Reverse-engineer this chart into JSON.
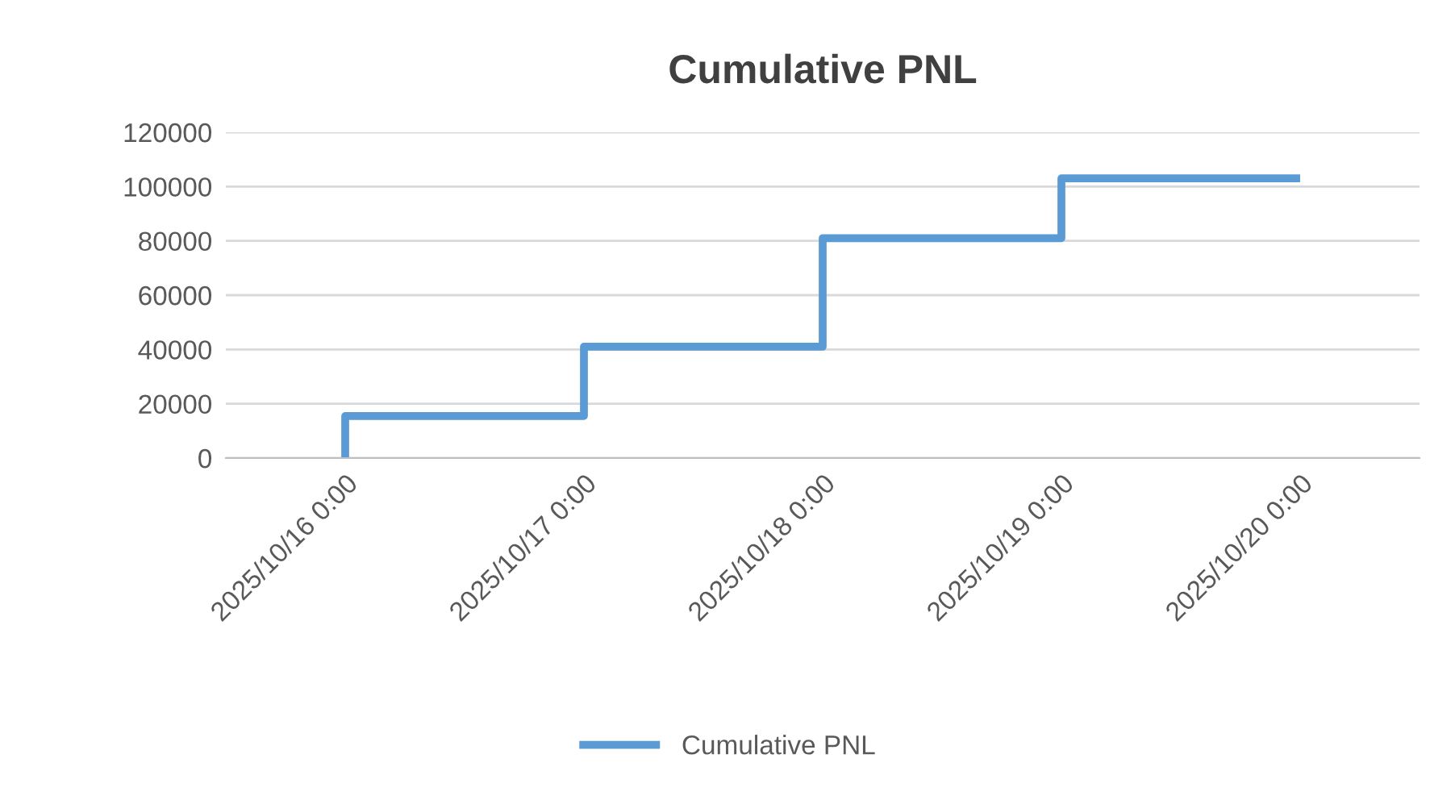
{
  "chart_data": {
    "type": "step",
    "title": "Cumulative PNL",
    "x": [
      "2025-10-16T00:00",
      "2025-10-16T00:00",
      "2025-10-17T00:00",
      "2025-10-18T00:00",
      "2025-10-19T00:00",
      "2025-10-20T00:00"
    ],
    "series": [
      {
        "name": "Cumulative PNL",
        "color": "#5b9bd5",
        "values": [
          0,
          15500,
          41000,
          81000,
          103000,
          103000
        ]
      }
    ],
    "xlim": [
      "2025-10-15T12:00",
      "2025-10-20T12:00"
    ],
    "xticks": [
      {
        "value": "2025-10-16T00:00",
        "label": "2025/10/16 0:00"
      },
      {
        "value": "2025-10-17T00:00",
        "label": "2025/10/17 0:00"
      },
      {
        "value": "2025-10-18T00:00",
        "label": "2025/10/18 0:00"
      },
      {
        "value": "2025-10-19T00:00",
        "label": "2025/10/19 0:00"
      },
      {
        "value": "2025-10-20T00:00",
        "label": "2025/10/20 0:00"
      }
    ],
    "ylim": [
      0,
      120000
    ],
    "yticks": [
      0,
      20000,
      40000,
      60000,
      80000,
      100000,
      120000
    ],
    "grid": "y",
    "legend": "bottom"
  }
}
